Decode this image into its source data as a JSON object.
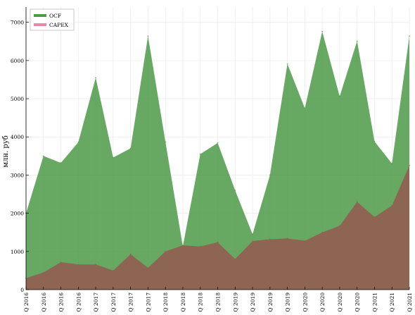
{
  "chart_data": {
    "type": "area",
    "categories": [
      "1Q 2016",
      "2Q 2016",
      "3Q 2016",
      "4Q 2016",
      "1Q 2017",
      "2Q 2017",
      "3Q 2017",
      "4Q 2017",
      "1Q 2018",
      "2Q 2018",
      "3Q 2018",
      "4Q 2018",
      "1Q 2019",
      "2Q 2019",
      "3Q 2019",
      "4Q 2019",
      "1Q 2020",
      "2Q 2020",
      "3Q 2020",
      "4Q 2020",
      "1Q 2021",
      "2Q 2021",
      "3Q 2021"
    ],
    "x_tick_labels": [
      "1Q 2016",
      "2Q 2016",
      "3Q 2016",
      "4Q 2016",
      "1Q 2017",
      "2Q 2017",
      "3Q 2017",
      "4Q 2017",
      "1Q 2018",
      "2Q 2018",
      "3Q 2018",
      "4Q 2018",
      "1Q 2019",
      "2Q 2019",
      "3Q 2019",
      "4Q 2019",
      "1Q 2020",
      "2Q 2020",
      "3Q 2020",
      "4Q 2020",
      "1Q 2021",
      "2Q 2021",
      "3Q 2021"
    ],
    "series": [
      {
        "name": "OCF",
        "color": "#4c9a48",
        "values": [
          2000,
          3500,
          3320,
          3860,
          5550,
          3460,
          3700,
          6640,
          3870,
          1130,
          3550,
          3840,
          2600,
          1450,
          3000,
          5910,
          4750,
          6760,
          5060,
          6510,
          3880,
          3300,
          6640
        ]
      },
      {
        "name": "CAPEX",
        "color": "#e28aa9",
        "values": [
          300,
          450,
          720,
          660,
          660,
          500,
          930,
          570,
          1000,
          1160,
          1130,
          1240,
          800,
          1270,
          1320,
          1340,
          1280,
          1500,
          1670,
          2300,
          1900,
          2200,
          3250
        ]
      }
    ],
    "overlap_color": "#906050",
    "title": "",
    "xlabel": "",
    "ylabel": "млн. руб",
    "ylim": [
      0,
      7400
    ],
    "y_ticks": [
      0,
      1000,
      2000,
      3000,
      4000,
      5000,
      6000,
      7000
    ],
    "grid": true,
    "legend": "top-left"
  }
}
